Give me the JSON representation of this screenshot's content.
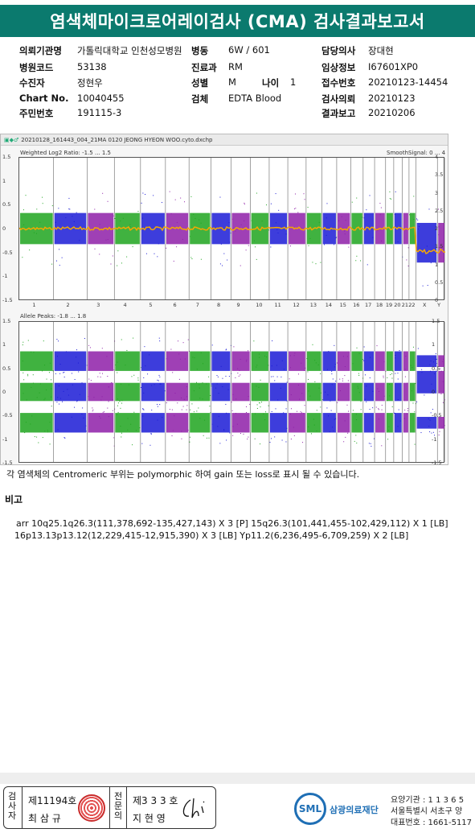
{
  "title": "염색체마이크로어레이검사 (CMA) 검사결과보고서",
  "patient": {
    "institution": {
      "label": "의뢰기관명",
      "value": "가톨릭대학교 인천성모병원"
    },
    "hospital_code": {
      "label": "병원코드",
      "value": "53138"
    },
    "tested_person": {
      "label": "수진자",
      "value": "정현우"
    },
    "chart_no": {
      "label": "Chart No.",
      "value": "10040455"
    },
    "resident_no": {
      "label": "주민번호",
      "value": "191115-3"
    },
    "ward": {
      "label": "병동",
      "value": "6W / 601"
    },
    "department": {
      "label": "진료과",
      "value": "RM"
    },
    "sex": {
      "label": "성별",
      "value": "M"
    },
    "age": {
      "label": "나이",
      "value": "1"
    },
    "specimen": {
      "label": "검체",
      "value": "EDTA Blood"
    },
    "doctor": {
      "label": "담당의사",
      "value": "장대현"
    },
    "clinical_info": {
      "label": "임상정보",
      "value": "I67601XP0"
    },
    "receipt_no": {
      "label": "접수번호",
      "value": "20210123-14454"
    },
    "request_date": {
      "label": "검사의뢰",
      "value": "20210123"
    },
    "report_date": {
      "label": "결과보고",
      "value": "20210206"
    }
  },
  "plot": {
    "file_name": "20210128_161443_004_21MA 0120 JEONG HYEON WOO.cyto.dxchp",
    "panel1_label": "Weighted Log2 Ratio: -1.5 ... 1.5",
    "panel1_right_label": "SmoothSignal: 0 ... 4",
    "panel2_label": "Allele Peaks: -1.8 ... 1.8",
    "chrom_labels": [
      "1",
      "2",
      "3",
      "4",
      "5",
      "6",
      "7",
      "8",
      "9",
      "10",
      "11",
      "12",
      "13",
      "14",
      "15",
      "16",
      "17",
      "18",
      "19",
      "20",
      "21",
      "22",
      "X",
      "Y"
    ],
    "left_ticks_1": [
      "1.5",
      "1",
      "0.5",
      "0",
      "-0.5",
      "-1",
      "-1.5"
    ],
    "right_ticks_1": [
      "4",
      "3.5",
      "3",
      "2.5",
      "2",
      "1.5",
      "1",
      "0.5",
      "0"
    ],
    "left_ticks_2": [
      "1.5",
      "1",
      "0.5",
      "0",
      "-0.5",
      "-1",
      "-1.5"
    ],
    "right_ticks_2": [
      "1.5",
      "1",
      "0.5",
      "0",
      "-0.5",
      "-1",
      "-1.5"
    ],
    "colors": {
      "green": "#1fa51f",
      "blue": "#1b1bd6",
      "purple": "#8e1fa8",
      "orange": "#f5a800"
    }
  },
  "note": "각 염색체의 Centromeric 부위는 polymorphic 하여 gain 또는 loss로 표시 될 수 있습니다.",
  "remarks_heading": "비고",
  "arr_line1": "arr 10q25.1q26.3(111,378,692-135,427,143) X 3 [P] 15q26.3(101,441,455-102,429,112) X 1 [LB]",
  "arr_line2": "16p13.13p13.12(12,229,415-12,915,390) X 3 [LB] Yp11.2(6,236,495-6,709,259) X 2 [LB]",
  "footer": {
    "tester_label": "검사자",
    "tester_no": "제11194호",
    "tester_name": "최 삼 규",
    "specialist_label": "전문의",
    "specialist_no": "제3 3 3 호",
    "specialist_name": "지 현 영",
    "lab_logo": "SML",
    "lab_name": "삼광의료재단",
    "contact_1": "요양기관 : 1 1 3 6 5",
    "contact_2": "서울특별시 서초구 양",
    "contact_3": "대표번호 : 1661-5117"
  }
}
